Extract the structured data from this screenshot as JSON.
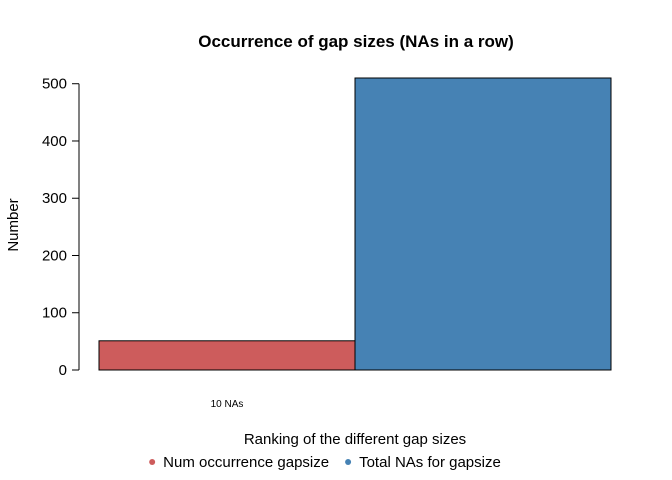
{
  "chart_data": {
    "type": "bar",
    "title": "Occurrence of gap sizes (NAs in a row)",
    "xlabel": "Ranking of the different gap sizes",
    "ylabel": "Number",
    "categories": [
      "10 NAs"
    ],
    "series": [
      {
        "name": "Num occurrence gapsize",
        "values": [
          51
        ],
        "color": "#CD5C5C"
      },
      {
        "name": "Total NAs for gapsize",
        "values": [
          510
        ],
        "color": "#4682B4"
      }
    ],
    "ylim": [
      0,
      510
    ],
    "yticks": [
      0,
      100,
      200,
      300,
      400,
      500
    ],
    "grid": false,
    "legend_position": "bottom"
  }
}
